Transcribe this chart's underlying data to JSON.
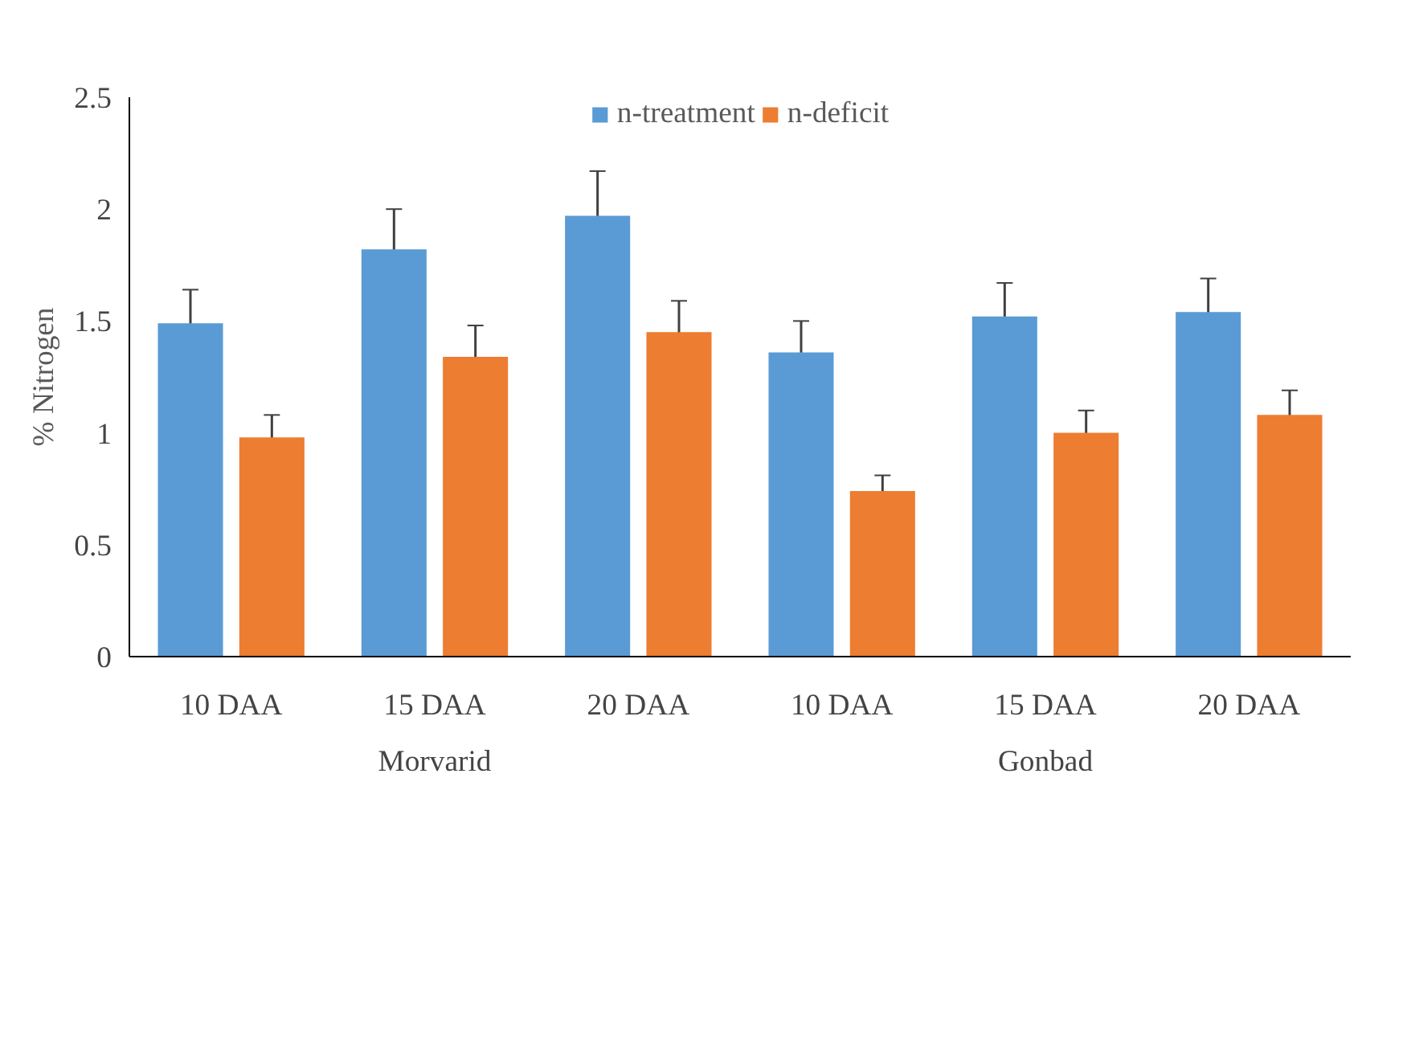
{
  "chart_data": {
    "type": "bar",
    "ylabel": "% Nitrogen",
    "categories": [
      "10 DAA",
      "15 DAA",
      "20 DAA",
      "10 DAA",
      "15 DAA",
      "20 DAA"
    ],
    "series": [
      {
        "name": "n-treatment",
        "color": "#5b9bd5",
        "values": [
          1.49,
          1.82,
          1.97,
          1.36,
          1.52,
          1.54
        ],
        "errors": [
          0.15,
          0.18,
          0.2,
          0.14,
          0.15,
          0.15
        ]
      },
      {
        "name": "n-deficit",
        "color": "#ed7d31",
        "values": [
          0.98,
          1.34,
          1.45,
          0.74,
          1.0,
          1.08
        ],
        "errors": [
          0.1,
          0.14,
          0.14,
          0.07,
          0.1,
          0.11
        ]
      }
    ],
    "ylim": [
      0,
      2.5
    ],
    "yticks": [
      0,
      0.5,
      1,
      1.5,
      2,
      2.5
    ],
    "grid": false,
    "legend": "top",
    "annotations": [
      "Morvarid",
      "Gonbad"
    ]
  }
}
